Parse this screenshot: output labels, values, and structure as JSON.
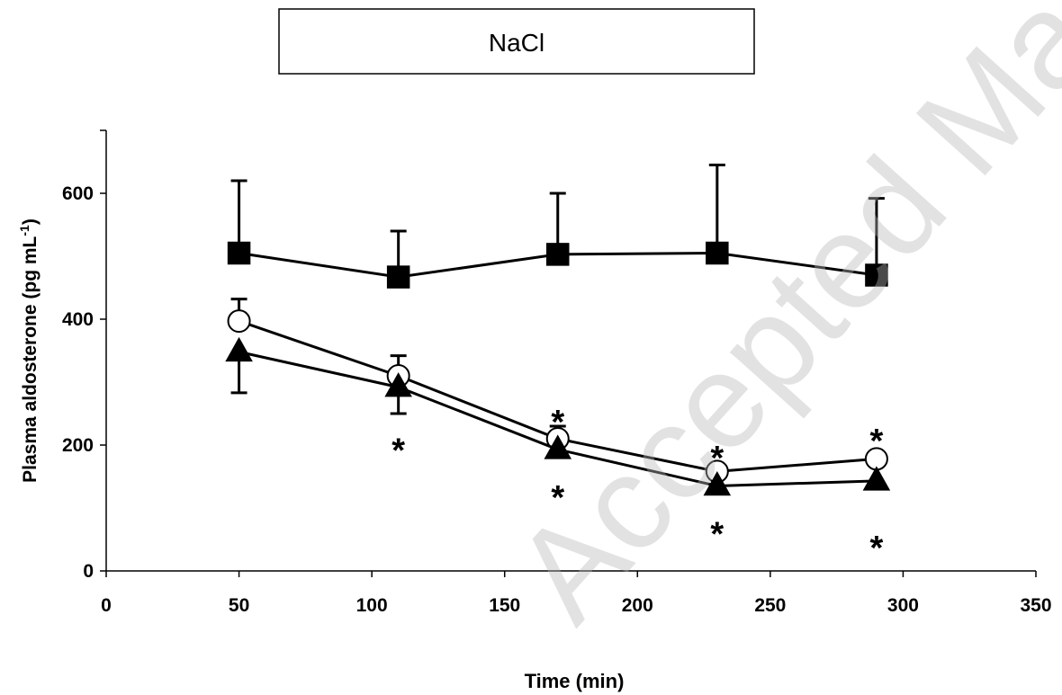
{
  "title_box": "NaCl",
  "watermark": "Accepted Manuscript",
  "chart_data": {
    "type": "line",
    "title": "NaCl",
    "xlabel": "Time (min)",
    "ylabel": "Plasma aldosterone (pg mL",
    "ylabel_sup": "-1",
    "ylabel_close": ")",
    "xlim": [
      0,
      350
    ],
    "ylim": [
      0,
      700
    ],
    "xticks": [
      0,
      50,
      100,
      150,
      200,
      250,
      300,
      350
    ],
    "yticks": [
      0,
      200,
      400,
      600
    ],
    "grid": false,
    "x": [
      50,
      110,
      170,
      230,
      290
    ],
    "series": [
      {
        "marker": "square",
        "fill": "#000000",
        "values": [
          505,
          467,
          503,
          505,
          470
        ],
        "err": [
          115,
          73,
          97,
          140,
          122
        ],
        "err_dir": "up"
      },
      {
        "marker": "circle",
        "fill": "#ffffff",
        "values": [
          397,
          310,
          210,
          158,
          178
        ],
        "err": [
          35,
          32,
          20,
          0,
          0
        ],
        "err_dir": "up"
      },
      {
        "marker": "triangle",
        "fill": "#000000",
        "values": [
          348,
          292,
          193,
          135,
          143
        ],
        "err": [
          65,
          42,
          0,
          0,
          0
        ],
        "err_dir": "down"
      }
    ],
    "annotations": [
      {
        "text": "*",
        "x": 110,
        "y": 205
      },
      {
        "text": "*",
        "x": 170,
        "y": 250
      },
      {
        "text": "*",
        "x": 170,
        "y": 130
      },
      {
        "text": "*",
        "x": 230,
        "y": 193
      },
      {
        "text": "*",
        "x": 230,
        "y": 72
      },
      {
        "text": "*",
        "x": 290,
        "y": 220
      },
      {
        "text": "*",
        "x": 290,
        "y": 50
      }
    ]
  }
}
